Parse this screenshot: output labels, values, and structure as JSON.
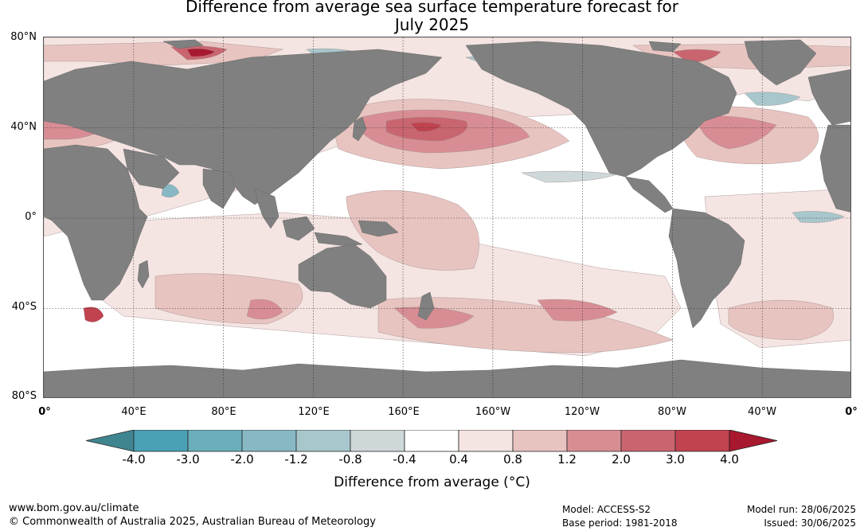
{
  "title": {
    "line1": "Difference from average sea surface temperature forecast for",
    "line2": "July 2025"
  },
  "map": {
    "type": "world-map-sst-anomaly",
    "projection": "equirectangular, Pacific-centred (0° to 360°)",
    "lat_range": [
      "80°S",
      "80°N"
    ],
    "lon_range": [
      "0°",
      "0°"
    ],
    "gridlines": true,
    "land_color": "#808080",
    "lat_labels": [
      "80°N",
      "40°N",
      "0°",
      "40°S",
      "80°S"
    ],
    "lon_labels": [
      "0°",
      "40°E",
      "80°E",
      "120°E",
      "160°E",
      "160°W",
      "120°W",
      "80°W",
      "40°W",
      "0°"
    ]
  },
  "colorbar": {
    "tick_labels": [
      "-4.0",
      "-3.0",
      "-2.0",
      "-1.2",
      "-0.8",
      "-0.4",
      "0.4",
      "0.8",
      "1.2",
      "2.0",
      "3.0",
      "4.0"
    ],
    "colors": [
      "#3f8590",
      "#4aa0b4",
      "#6aaebb",
      "#87b8c4",
      "#a8c7cc",
      "#cfd8d9",
      "#ffffff",
      "#f4e4e2",
      "#e8c4c0",
      "#d88d94",
      "#c9656f",
      "#c0434f",
      "#a8182e"
    ],
    "extend": "both",
    "label": "Difference from average (",
    "label_unit": "°C",
    "label_close": ")"
  },
  "footer": {
    "website": "www.bom.gov.au/climate",
    "copyright": "© Commonwealth of Australia 2025, Australian Bureau of Meteorology",
    "model": "Model: ACCESS-S2",
    "base_period": "Base period: 1981-2018",
    "model_run": "Model run: 28/06/2025",
    "issued": "Issued: 30/06/2025"
  }
}
